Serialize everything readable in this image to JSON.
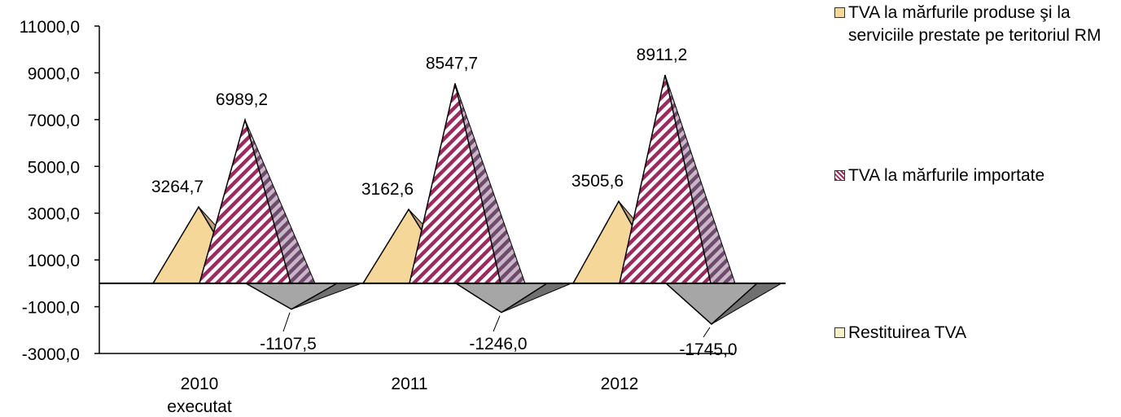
{
  "chart_data": {
    "type": "area",
    "categories": [
      "2010\nexecutat",
      "2011",
      "2012"
    ],
    "ylim": [
      -3000,
      11000
    ],
    "yticks": [
      -3000,
      -1000,
      1000,
      3000,
      5000,
      7000,
      9000,
      11000
    ],
    "ytick_labels": [
      "-3000,0",
      "-1000,0",
      "1000,0",
      "3000,0",
      "5000,0",
      "7000,0",
      "9000,0",
      "11000,0"
    ],
    "series": [
      {
        "name": "TVA la mărfurile produse şi la serviciile prestate pe teritoriul RM",
        "values": [
          3264.7,
          3162.6,
          3505.6
        ],
        "labels": [
          "3264,7",
          "3162,6",
          "3505,6"
        ],
        "color_front": "#f5d79a",
        "color_side": "#b8a074"
      },
      {
        "name": "TVA la mărfurile importate",
        "values": [
          6989.2,
          8547.7,
          8911.2
        ],
        "labels": [
          "6989,2",
          "8547,7",
          "8911,2"
        ],
        "color_front": "#9b2a5f",
        "color_side": "#6e4a6c"
      },
      {
        "name": "Restituirea TVA",
        "values": [
          -1107.5,
          -1246.0,
          -1745.0
        ],
        "labels": [
          "-1107,5",
          "-1246,0",
          "-1745,0"
        ],
        "color_front": "#a6a6a6",
        "color_side": "#707070"
      }
    ],
    "legend_position": "right",
    "grid": false
  }
}
